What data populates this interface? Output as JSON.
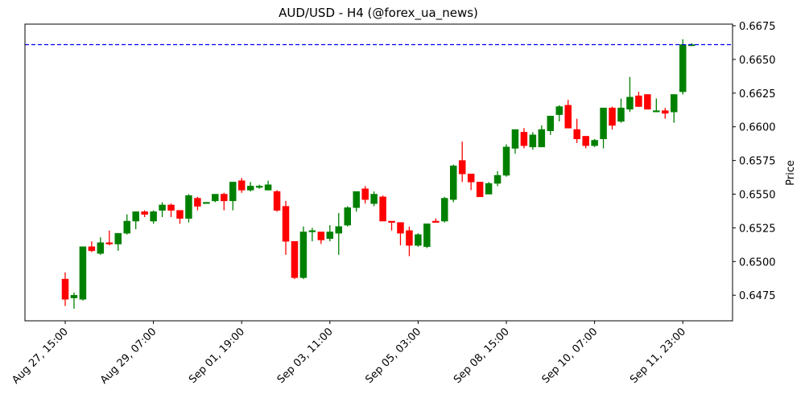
{
  "chart_data": {
    "type": "candlestick",
    "title": "AUD/USD - H4 (@forex_ua_news)",
    "xlabel": "",
    "ylabel": "Price",
    "ylim": [
      0.64555,
      0.66782
    ],
    "y_ticks": [
      "0.6475",
      "0.6500",
      "0.6525",
      "0.6550",
      "0.6575",
      "0.6600",
      "0.6625",
      "0.6650",
      "0.6675"
    ],
    "x_ticks": [
      {
        "index": 0,
        "label": "Aug 27, 15:00"
      },
      {
        "index": 10,
        "label": "Aug 29, 07:00"
      },
      {
        "index": 20,
        "label": "Sep 01, 19:00"
      },
      {
        "index": 30,
        "label": "Sep 03, 11:00"
      },
      {
        "index": 40,
        "label": "Sep 05, 03:00"
      },
      {
        "index": 50,
        "label": "Sep 08, 15:00"
      },
      {
        "index": 60,
        "label": "Sep 10, 07:00"
      },
      {
        "index": 70,
        "label": "Sep 11, 23:00"
      }
    ],
    "grid": false,
    "y_axis_position": "right",
    "up_color": "#008000",
    "down_color": "#ff0000",
    "reference_line": {
      "value": 0.6661,
      "color": "#0000ff",
      "style": "dashed"
    },
    "candles": [
      [
        0.6487,
        0.6492,
        0.6467,
        0.6472
      ],
      [
        0.6473,
        0.6477,
        0.6465,
        0.6475
      ],
      [
        0.6472,
        0.6511,
        0.6471,
        0.6511
      ],
      [
        0.6511,
        0.6515,
        0.6507,
        0.6508
      ],
      [
        0.6506,
        0.6518,
        0.6505,
        0.6514
      ],
      [
        0.6514,
        0.6523,
        0.6512,
        0.6513
      ],
      [
        0.6513,
        0.6521,
        0.6508,
        0.6521
      ],
      [
        0.6521,
        0.6535,
        0.652,
        0.653
      ],
      [
        0.653,
        0.6537,
        0.6524,
        0.6537
      ],
      [
        0.6537,
        0.6538,
        0.6533,
        0.6535
      ],
      [
        0.653,
        0.6538,
        0.6528,
        0.6537
      ],
      [
        0.6538,
        0.6544,
        0.6533,
        0.6542
      ],
      [
        0.6542,
        0.6543,
        0.6533,
        0.6538
      ],
      [
        0.6538,
        0.6538,
        0.6528,
        0.6532
      ],
      [
        0.6532,
        0.655,
        0.6529,
        0.6549
      ],
      [
        0.6547,
        0.6548,
        0.6538,
        0.6541
      ],
      [
        0.6543,
        0.6544,
        0.6543,
        0.6544
      ],
      [
        0.6545,
        0.655,
        0.6544,
        0.655
      ],
      [
        0.655,
        0.6551,
        0.6538,
        0.6545
      ],
      [
        0.6545,
        0.6559,
        0.6538,
        0.6559
      ],
      [
        0.656,
        0.6562,
        0.6551,
        0.6553
      ],
      [
        0.6553,
        0.6559,
        0.6552,
        0.6556
      ],
      [
        0.6555,
        0.6557,
        0.6554,
        0.6556
      ],
      [
        0.6553,
        0.656,
        0.6553,
        0.6557
      ],
      [
        0.6552,
        0.6553,
        0.6537,
        0.6538
      ],
      [
        0.6541,
        0.6545,
        0.6505,
        0.6515
      ],
      [
        0.6515,
        0.6515,
        0.6487,
        0.6488
      ],
      [
        0.6488,
        0.6526,
        0.6487,
        0.6522
      ],
      [
        0.6522,
        0.6525,
        0.6515,
        0.6523
      ],
      [
        0.6522,
        0.6522,
        0.6513,
        0.6516
      ],
      [
        0.6517,
        0.6527,
        0.6515,
        0.6522
      ],
      [
        0.6521,
        0.6536,
        0.6505,
        0.6526
      ],
      [
        0.6527,
        0.6541,
        0.6526,
        0.654
      ],
      [
        0.654,
        0.6552,
        0.6537,
        0.6552
      ],
      [
        0.6554,
        0.6556,
        0.6543,
        0.6546
      ],
      [
        0.6543,
        0.6552,
        0.6541,
        0.655
      ],
      [
        0.6548,
        0.6549,
        0.653,
        0.653
      ],
      [
        0.653,
        0.653,
        0.6523,
        0.6529
      ],
      [
        0.6529,
        0.6529,
        0.6512,
        0.6521
      ],
      [
        0.6523,
        0.6526,
        0.6504,
        0.6512
      ],
      [
        0.6512,
        0.6521,
        0.6511,
        0.652
      ],
      [
        0.6511,
        0.6528,
        0.651,
        0.6528
      ],
      [
        0.653,
        0.6532,
        0.6529,
        0.6529
      ],
      [
        0.653,
        0.6548,
        0.6529,
        0.6547
      ],
      [
        0.6546,
        0.6572,
        0.6544,
        0.6571
      ],
      [
        0.6575,
        0.6589,
        0.6559,
        0.6565
      ],
      [
        0.6565,
        0.6565,
        0.6553,
        0.6559
      ],
      [
        0.6559,
        0.6559,
        0.6548,
        0.6548
      ],
      [
        0.655,
        0.6559,
        0.655,
        0.6558
      ],
      [
        0.6558,
        0.6567,
        0.6556,
        0.6564
      ],
      [
        0.6564,
        0.6587,
        0.6563,
        0.6585
      ],
      [
        0.6584,
        0.6598,
        0.658,
        0.6598
      ],
      [
        0.6596,
        0.6599,
        0.6584,
        0.6586
      ],
      [
        0.6585,
        0.6596,
        0.6583,
        0.6594
      ],
      [
        0.6585,
        0.6601,
        0.6585,
        0.6598
      ],
      [
        0.6597,
        0.6608,
        0.6594,
        0.6608
      ],
      [
        0.6609,
        0.6616,
        0.6604,
        0.6615
      ],
      [
        0.6616,
        0.662,
        0.6599,
        0.6599
      ],
      [
        0.6598,
        0.6606,
        0.6588,
        0.6591
      ],
      [
        0.6593,
        0.6593,
        0.6584,
        0.6586
      ],
      [
        0.6586,
        0.6591,
        0.6585,
        0.659
      ],
      [
        0.6591,
        0.6614,
        0.6584,
        0.6614
      ],
      [
        0.6614,
        0.6615,
        0.6598,
        0.6601
      ],
      [
        0.6604,
        0.6621,
        0.6603,
        0.6614
      ],
      [
        0.6613,
        0.6637,
        0.6611,
        0.6622
      ],
      [
        0.6623,
        0.6626,
        0.6615,
        0.6615
      ],
      [
        0.6624,
        0.6624,
        0.6613,
        0.6613
      ],
      [
        0.6611,
        0.6621,
        0.6611,
        0.6612
      ],
      [
        0.6612,
        0.6614,
        0.6606,
        0.661
      ],
      [
        0.6611,
        0.6624,
        0.6603,
        0.6624
      ],
      [
        0.6626,
        0.6665,
        0.6624,
        0.6661
      ],
      [
        0.6661,
        0.6662,
        0.666,
        0.6661
      ]
    ],
    "candle_format": [
      "open",
      "high",
      "low",
      "close"
    ]
  }
}
